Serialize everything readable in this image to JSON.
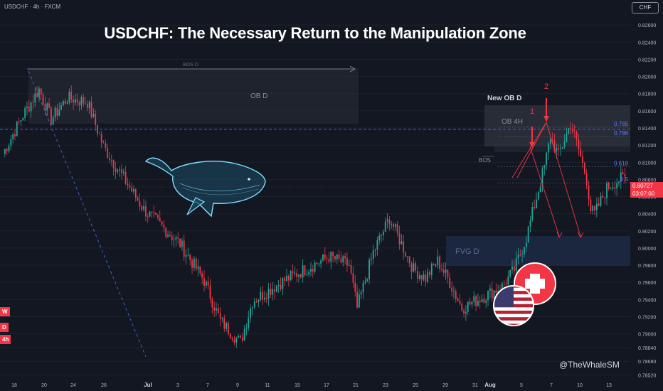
{
  "symbol_label": "USDCHF · 4h · FXCM",
  "currency_label": "CHF",
  "watermark": "@TheWhaleSM",
  "price_tag": {
    "price": "0.80727",
    "countdown": "03:07:00"
  },
  "timeframes": [
    "W",
    "D",
    "4h"
  ],
  "colors": {
    "background": "#131722",
    "bull": "#26a69a",
    "bear": "#f23645",
    "zone": "#2a3e5c",
    "fib": "#3d5afe"
  },
  "chart_data": {
    "type": "candlestick",
    "title": "USDCHF: The Necessary Return to the Manipulation Zone",
    "y_ticks": [
      0.826,
      0.824,
      0.822,
      0.82,
      0.818,
      0.816,
      0.814,
      0.812,
      0.81,
      0.808,
      0.806,
      0.804,
      0.802,
      0.8,
      0.798,
      0.796,
      0.794,
      0.792,
      0.79,
      0.7884,
      0.7868,
      0.7852
    ],
    "ylim": [
      0.7852,
      0.8278
    ],
    "x_ticks": [
      "18",
      "20",
      "24",
      "26",
      "Jul",
      "3",
      "7",
      "9",
      "11",
      "15",
      "17",
      "21",
      "23",
      "25",
      "29",
      "31",
      "Aug",
      "5",
      "7",
      "10",
      "13"
    ],
    "bars": 240,
    "path": [
      [
        0,
        0.811
      ],
      [
        10,
        0.8155
      ],
      [
        18,
        0.8185
      ],
      [
        24,
        0.815
      ],
      [
        32,
        0.8175
      ],
      [
        42,
        0.817
      ],
      [
        50,
        0.8118
      ],
      [
        70,
        0.8045
      ],
      [
        88,
        0.8005
      ],
      [
        100,
        0.7962
      ],
      [
        108,
        0.7915
      ],
      [
        118,
        0.789
      ],
      [
        124,
        0.7938
      ],
      [
        138,
        0.796
      ],
      [
        150,
        0.7975
      ],
      [
        162,
        0.799
      ],
      [
        172,
        0.798
      ],
      [
        176,
        0.793
      ],
      [
        184,
        0.7995
      ],
      [
        192,
        0.8035
      ],
      [
        198,
        0.8005
      ],
      [
        204,
        0.7975
      ],
      [
        210,
        0.7965
      ],
      [
        216,
        0.7985
      ],
      [
        222,
        0.796
      ],
      [
        228,
        0.793
      ],
      [
        236,
        0.794
      ],
      [
        248,
        0.7955
      ],
      [
        254,
        0.7975
      ],
      [
        260,
        0.8012
      ],
      [
        264,
        0.805
      ],
      [
        269,
        0.8095
      ],
      [
        272,
        0.813
      ],
      [
        276,
        0.8108
      ],
      [
        282,
        0.8145
      ],
      [
        286,
        0.8115
      ],
      [
        290,
        0.808
      ],
      [
        292,
        0.8045
      ],
      [
        294,
        0.804
      ],
      [
        300,
        0.807
      ],
      [
        306,
        0.808
      ],
      [
        310,
        0.8082
      ]
    ],
    "zones": [
      {
        "label": "OB D"
      },
      {
        "label": "OB 4H"
      },
      {
        "label": "FVG D"
      }
    ],
    "annotations": {
      "bos_top": "BOS D",
      "bos_mid": "BOS",
      "new_ob": "New OB D",
      "point1": "1",
      "point2": "2"
    },
    "fib_levels": [
      {
        "label": "0.765",
        "price": 0.8141
      },
      {
        "label": "0.786",
        "price": 0.813
      },
      {
        "label": "0.618",
        "price": 0.8095
      },
      {
        "label": "0.5",
        "price": 0.8076
      }
    ]
  }
}
